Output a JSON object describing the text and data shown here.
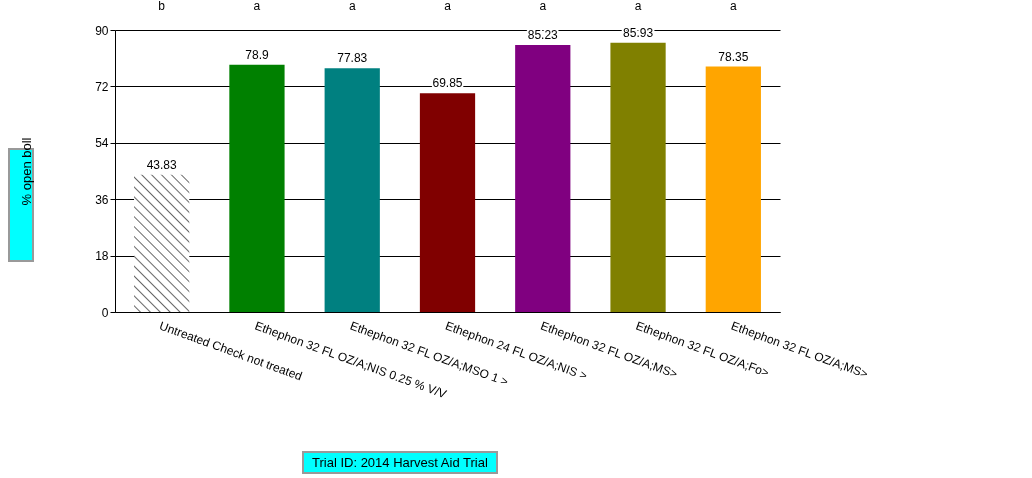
{
  "chart_data": {
    "type": "bar",
    "ylabel": "% open boll",
    "categories": [
      "Untreated Check not treated",
      "Ethephon 32 FL OZ/A;NIS 0.25 % V/V",
      "Ethephon 32 FL OZ/A;MSO 1 >",
      "Ethephon 24 FL OZ/A;NIS >",
      "Ethephon 32 FL OZ/A;MS>",
      "Ethephon 32 FL OZ/A;Fo>",
      "Ethephon 32 FL OZ/A;MS>"
    ],
    "values": [
      43.83,
      78.9,
      77.83,
      69.85,
      85.23,
      85.93,
      78.35
    ],
    "colors": [
      "#ffffff",
      "#008000",
      "#008080",
      "#800000",
      "#800080",
      "#808000",
      "#ffa500"
    ],
    "ylim": [
      0,
      90
    ],
    "yticks": [
      0,
      18,
      36,
      54,
      72,
      90
    ],
    "grid": "y",
    "data_labels": true,
    "annotations": [
      "b",
      "a",
      "a",
      "a",
      "a",
      "a",
      "a",
      "Trial ID: 2014 Harvest Aid Trial"
    ]
  }
}
